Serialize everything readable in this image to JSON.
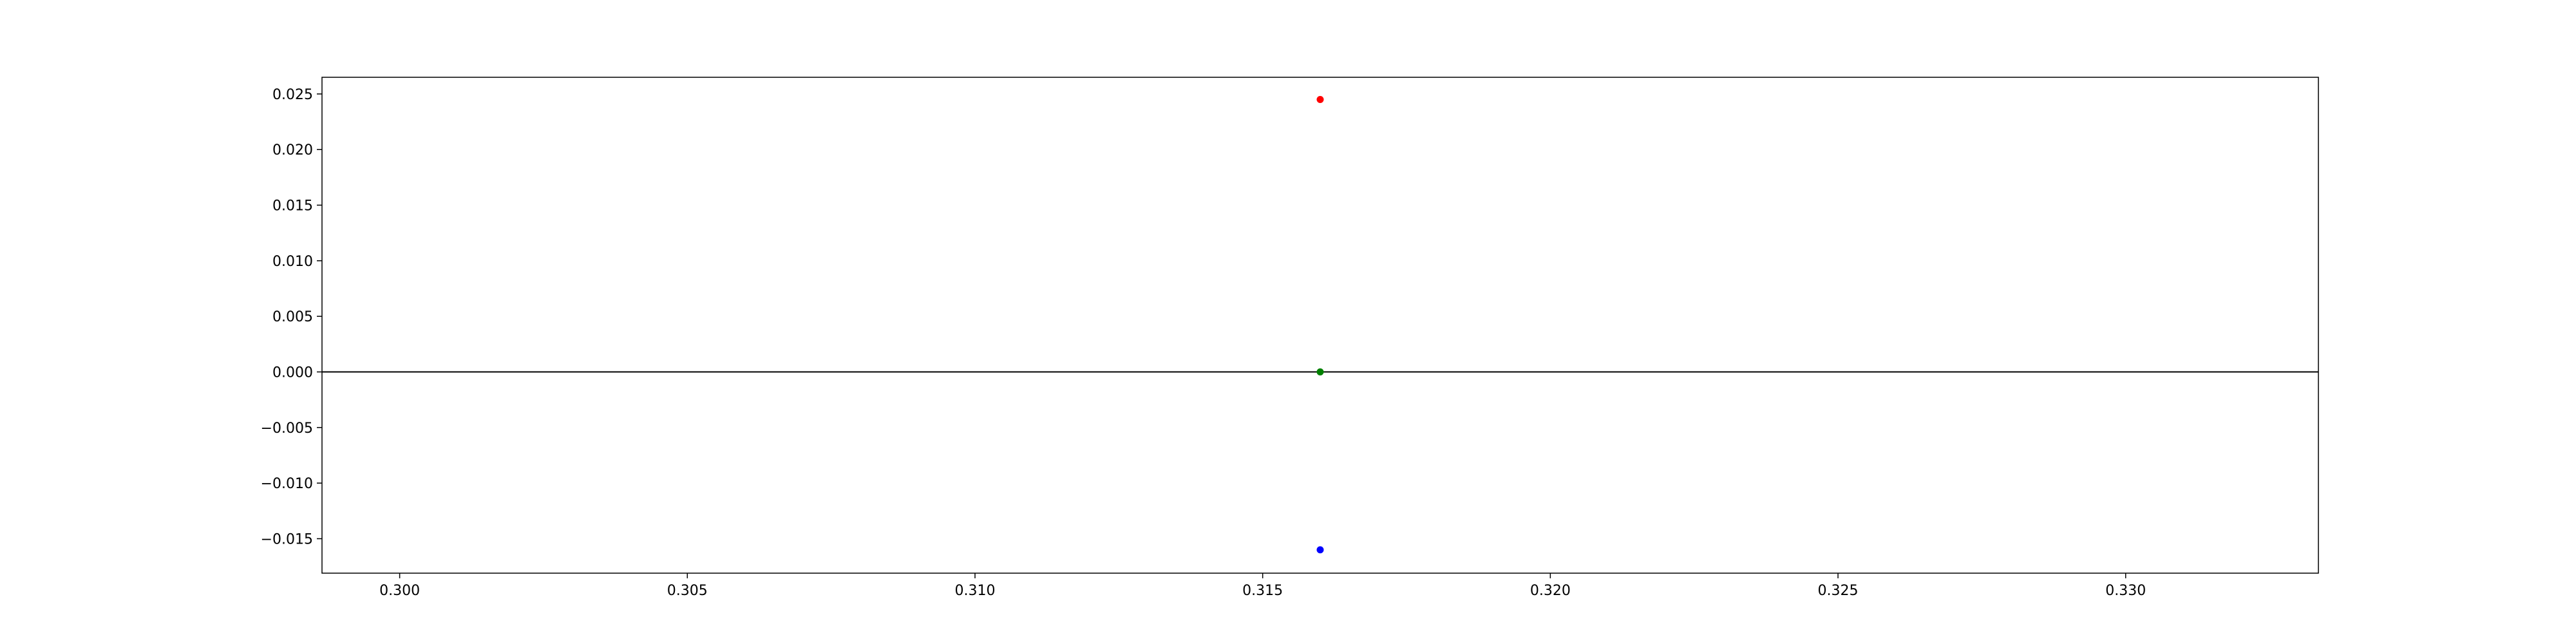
{
  "chart_data": {
    "type": "scatter",
    "title": "",
    "xlabel": "",
    "ylabel": "",
    "xlim": [
      0.29865,
      0.33335
    ],
    "ylim": [
      -0.0181,
      0.0265
    ],
    "xticks": [
      0.3,
      0.305,
      0.31,
      0.315,
      0.32,
      0.325,
      0.33
    ],
    "xtick_labels": [
      "0.300",
      "0.305",
      "0.310",
      "0.315",
      "0.320",
      "0.325",
      "0.330"
    ],
    "yticks": [
      0.025,
      0.02,
      0.015,
      0.01,
      0.005,
      0.0,
      -0.005,
      -0.01,
      -0.015
    ],
    "ytick_labels": [
      "0.025",
      "0.020",
      "0.015",
      "0.010",
      "0.005",
      "0.000",
      "−0.005",
      "−0.010",
      "−0.015"
    ],
    "grid": false,
    "reference_line": {
      "y": 0.0,
      "color": "#000000"
    },
    "points": [
      {
        "x": 0.316,
        "y": 0.0245,
        "color": "#ff0000"
      },
      {
        "x": 0.316,
        "y": 0.0,
        "color": "#008000"
      },
      {
        "x": 0.316,
        "y": -0.016,
        "color": "#0000ff"
      }
    ]
  }
}
